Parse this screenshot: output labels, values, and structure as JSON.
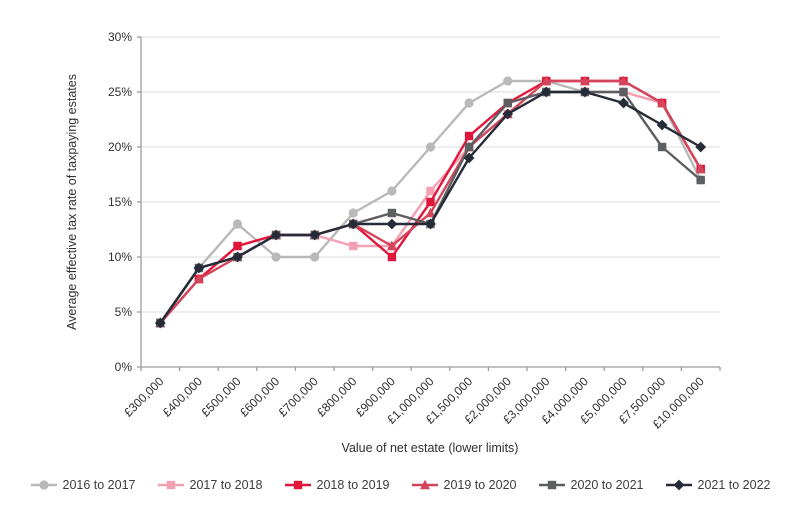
{
  "chart_data": {
    "type": "line",
    "title": "",
    "xlabel": "Value of net estate (lower limits)",
    "ylabel": "Average effective tax rate of taxpaying estates",
    "ylim": [
      0,
      30
    ],
    "ytick_step": 5,
    "ytick_labels": [
      "0%",
      "5%",
      "10%",
      "15%",
      "20%",
      "25%",
      "30%"
    ],
    "grid": true,
    "legend_position": "bottom",
    "categories": [
      "£300,000",
      "£400,000",
      "£500,000",
      "£600,000",
      "£700,000",
      "£800,000",
      "£900,000",
      "£1,000,000",
      "£1,500,000",
      "£2,000,000",
      "£3,000,000",
      "£4,000,000",
      "£5,000,000",
      "£7,500,000",
      "£10,000,000"
    ],
    "series": [
      {
        "name": "2016 to 2017",
        "color": "#b9b9b9",
        "marker": "circle",
        "values": [
          4,
          9,
          13,
          10,
          10,
          14,
          16,
          20,
          24,
          26,
          26,
          25,
          25,
          24,
          17
        ]
      },
      {
        "name": "2017 to 2018",
        "color": "#f49fb2",
        "marker": "square",
        "values": [
          4,
          8,
          11,
          12,
          12,
          11,
          11,
          16,
          20,
          23,
          25,
          25,
          25,
          24,
          18
        ]
      },
      {
        "name": "2018 to 2019",
        "color": "#e0173a",
        "marker": "square",
        "values": [
          4,
          8,
          11,
          12,
          12,
          13,
          10,
          15,
          21,
          24,
          26,
          26,
          26,
          24,
          18
        ]
      },
      {
        "name": "2019 to 2020",
        "color": "#d2455a",
        "marker": "triangle",
        "values": [
          4,
          8,
          10,
          12,
          12,
          13,
          11,
          14,
          20,
          23,
          26,
          26,
          26,
          24,
          18
        ]
      },
      {
        "name": "2020 to 2021",
        "color": "#5d5e62",
        "marker": "square",
        "values": [
          4,
          9,
          10,
          12,
          12,
          13,
          14,
          13,
          20,
          24,
          25,
          25,
          25,
          20,
          17
        ]
      },
      {
        "name": "2021 to 2022",
        "color": "#262b38",
        "marker": "diamond",
        "values": [
          4,
          9,
          10,
          12,
          12,
          13,
          13,
          13,
          19,
          23,
          25,
          25,
          24,
          22,
          20
        ]
      }
    ],
    "axis_color": "#9e9e9e",
    "grid_color": "#dcdcdc"
  }
}
